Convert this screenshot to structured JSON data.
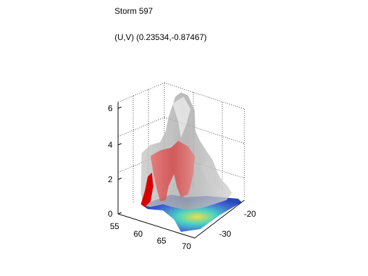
{
  "title": "Storm 597",
  "subtitle": "(U,V) (0.23534,-0.87467)",
  "chart_data": {
    "type": "3d-isosurface",
    "title": "Storm 597",
    "subtitle": "(U,V) (0.23534,-0.87467)",
    "z_ticks": [
      "0",
      "2",
      "4",
      "6"
    ],
    "x_ticks": [
      "55",
      "60",
      "65",
      "70"
    ],
    "y_ticks": [
      "-20",
      "-30"
    ],
    "z_range": [
      0,
      6.5
    ],
    "grid": true,
    "colors": {
      "outer_surface": "#b4b4b4",
      "inner_surface": "#dc4646",
      "core": "#dc0000",
      "base_map_low": "#1e3cb4",
      "base_map_mid": "#40d0c0",
      "base_map_high": "#e8e040"
    }
  }
}
